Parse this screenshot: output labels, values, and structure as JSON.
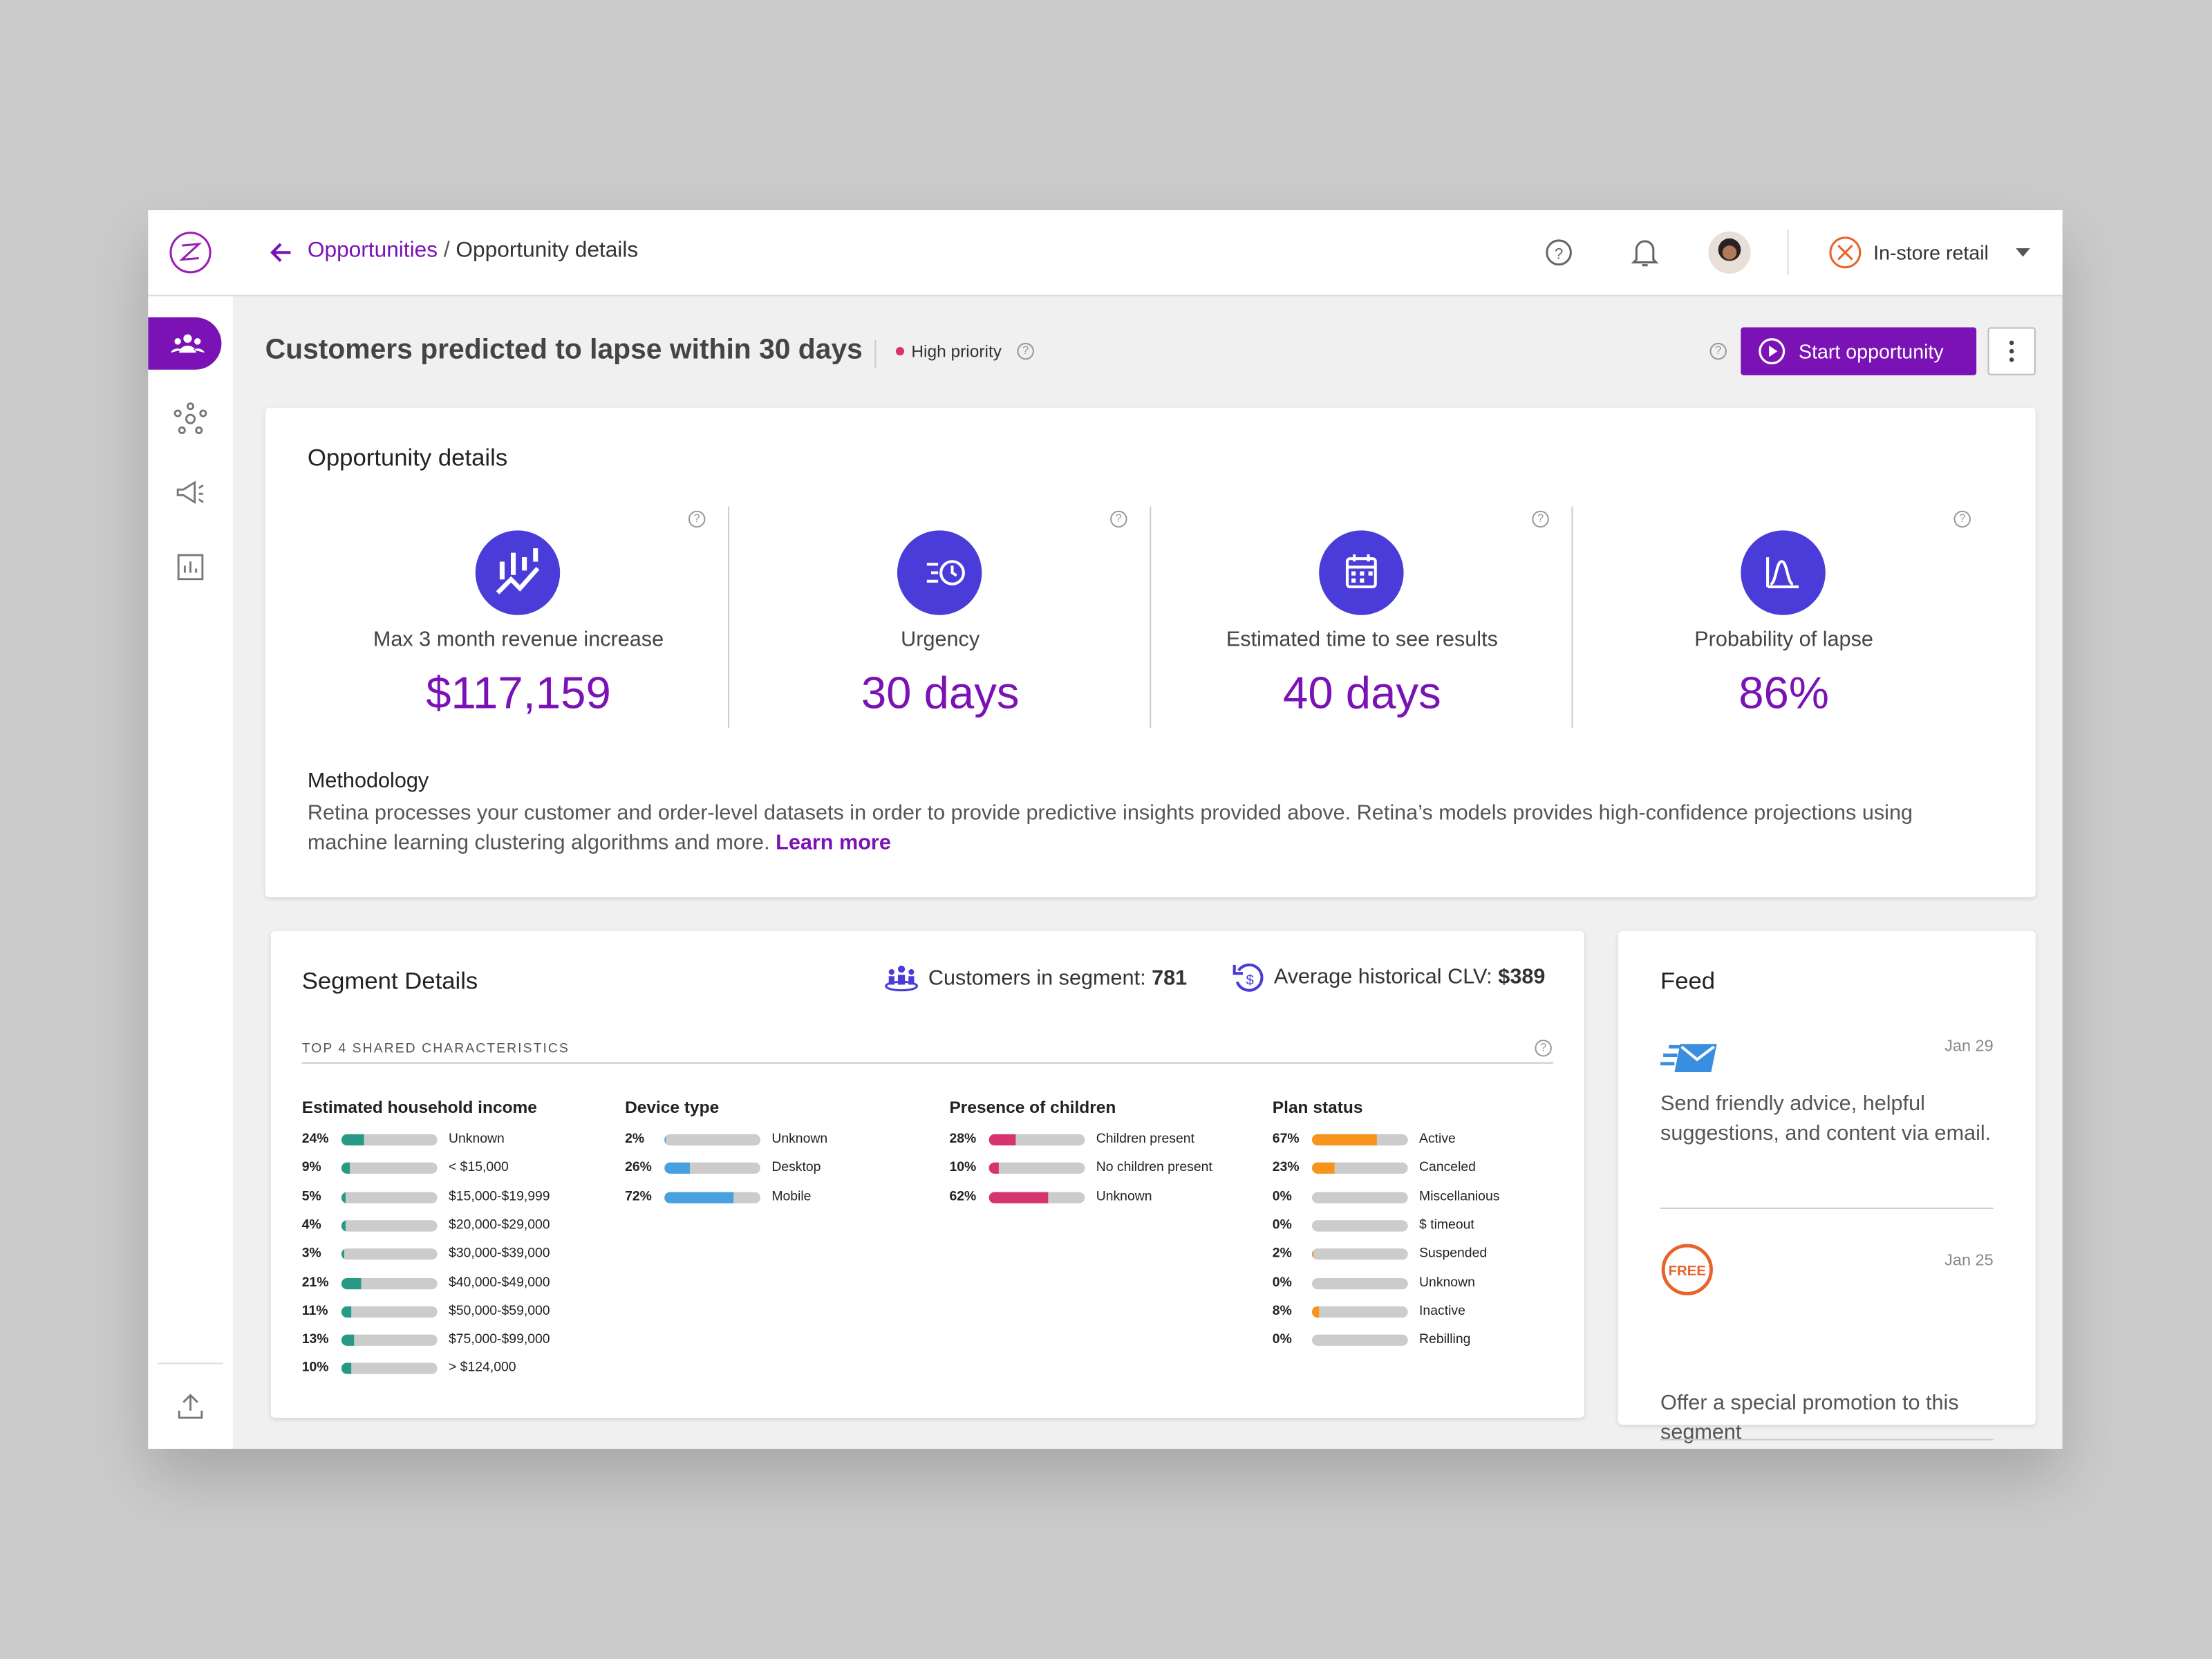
{
  "nav": {
    "breadcrumb": [
      "Opportunities",
      "Opportunity details"
    ],
    "workspace": "In-store retail"
  },
  "header": {
    "title": "Customers predicted to lapse within 30 days",
    "badge": "High priority",
    "button": "Start opportunity"
  },
  "details": {
    "title": "Opportunity details",
    "metrics": [
      {
        "label": "Max 3 month revenue increase",
        "value": "$117,159"
      },
      {
        "label": "Urgency",
        "value": "30 days"
      },
      {
        "label": "Estimated time to see results",
        "value": "40 days"
      },
      {
        "label": "Probability of lapse",
        "value": "86%"
      }
    ],
    "methodology": {
      "title": "Methodology",
      "text": "Retina processes your customer and order-level datasets in order to provide predictive insights provided above. Retina’s models provides high-confidence projections using machine learning clustering algorithms and more.",
      "link": "Learn more"
    }
  },
  "segment": {
    "title": "Segment Details",
    "customers_label": "Customers in segment:",
    "customers": "781",
    "clv_label": "Average historical CLV:",
    "clv": "$389",
    "section": "TOP 4 SHARED CHARACTERISTICS",
    "characteristics": [
      {
        "name": "Estimated household income",
        "color": "#279a86",
        "items": [
          {
            "label": "Unknown",
            "value": 24,
            "value_label": "24%"
          },
          {
            "label": "< $15,000",
            "value": 9,
            "value_label": "9%"
          },
          {
            "label": "$15,000-$19,999",
            "value": 5,
            "value_label": "5%"
          },
          {
            "label": "$20,000-$29,000",
            "value": 4,
            "value_label": "4%"
          },
          {
            "label": "$30,000-$39,000",
            "value": 3,
            "value_label": "3%"
          },
          {
            "label": "$40,000-$49,000",
            "value": 21,
            "value_label": "21%"
          },
          {
            "label": "$50,000-$59,000",
            "value": 11,
            "value_label": "11%"
          },
          {
            "label": "$75,000-$99,000",
            "value": 13,
            "value_label": "13%"
          },
          {
            "label": "> $124,000",
            "value": 10,
            "value_label": "10%"
          }
        ]
      },
      {
        "name": "Device type",
        "color": "#47a1e0",
        "items": [
          {
            "label": "Unknown",
            "value": 2,
            "value_label": "2%"
          },
          {
            "label": "Desktop",
            "value": 26,
            "value_label": "26%"
          },
          {
            "label": "Mobile",
            "value": 72,
            "value_label": "72%"
          }
        ]
      },
      {
        "name": "Presence of children",
        "color": "#d6336f",
        "items": [
          {
            "label": "Children present",
            "value": 28,
            "value_label": "28%"
          },
          {
            "label": "No children present",
            "value": 10,
            "value_label": "10%"
          },
          {
            "label": "Unknown",
            "value": 62,
            "value_label": "62%"
          }
        ]
      },
      {
        "name": "Plan status",
        "color": "#f7941d",
        "items": [
          {
            "label": "Active",
            "value": 67,
            "value_label": "67%"
          },
          {
            "label": "Canceled",
            "value": 23,
            "value_label": "23%"
          },
          {
            "label": "Miscellanious",
            "value": 0,
            "value_label": "0%"
          },
          {
            "label": "$ timeout",
            "value": 0,
            "value_label": "0%"
          },
          {
            "label": "Suspended",
            "value": 2,
            "value_label": "2%"
          },
          {
            "label": "Unknown",
            "value": 0,
            "value_label": "0%"
          },
          {
            "label": "Inactive",
            "value": 8,
            "value_label": "8%"
          },
          {
            "label": "Rebilling",
            "value": 0,
            "value_label": "0%"
          }
        ]
      }
    ]
  },
  "feed": {
    "title": "Feed",
    "items": [
      {
        "date": "Jan 29",
        "text": "Send friendly advice, helpful suggestions, and content via email."
      },
      {
        "date": "Jan 25",
        "text": "Offer a special promotion to this segment"
      }
    ]
  }
}
